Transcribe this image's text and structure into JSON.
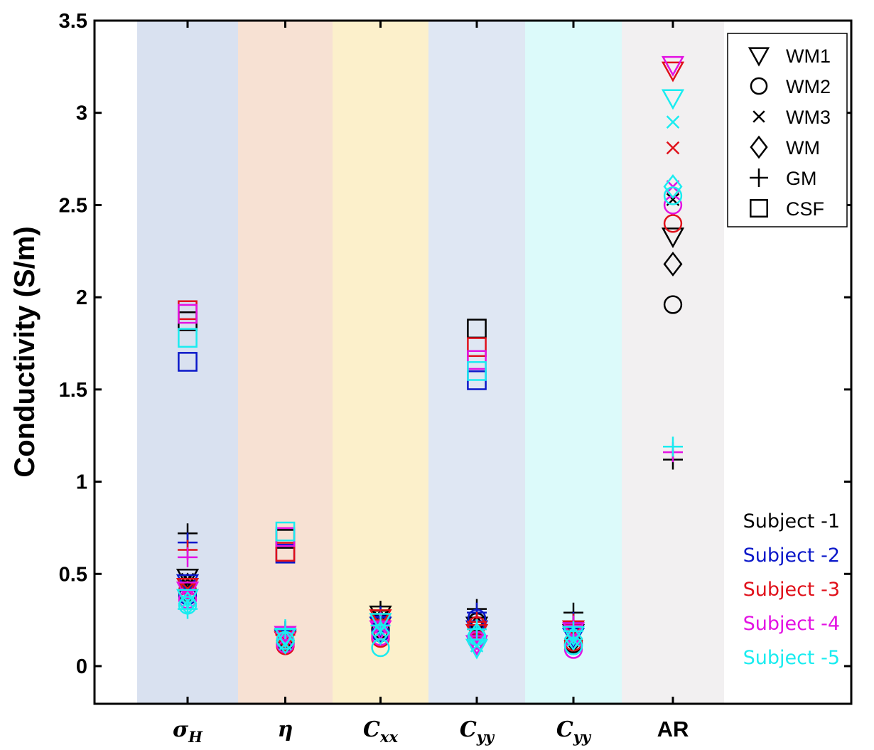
{
  "chart_data": {
    "type": "scatter",
    "ylabel": "Conductivity (S/m)",
    "ylim": [
      -0.2,
      3.5
    ],
    "yticks": [
      "0",
      "0.5",
      "1",
      "1.5",
      "2",
      "2.5",
      "3",
      "3.5"
    ],
    "categories": [
      {
        "base": "σ",
        "sub": "H",
        "italic": true,
        "band": "#d9e1f0"
      },
      {
        "base": "η",
        "sub": "",
        "italic": true,
        "band": "#f7e1d3"
      },
      {
        "base": "C",
        "sub": "xx",
        "italic": true,
        "band": "#fcf0cb"
      },
      {
        "base": "C",
        "sub": "yy",
        "italic": true,
        "band": "#dfe7f3"
      },
      {
        "base": "C",
        "sub": "yy",
        "italic": true,
        "band": "#dcfafa"
      },
      {
        "base": "AR",
        "sub": "",
        "italic": false,
        "band": "#f2f0f1"
      }
    ],
    "legend_markers": [
      {
        "marker": "triangle-down",
        "label": "WM1"
      },
      {
        "marker": "circle",
        "label": "WM2"
      },
      {
        "marker": "x",
        "label": "WM3"
      },
      {
        "marker": "diamond",
        "label": "WM"
      },
      {
        "marker": "plus",
        "label": "GM"
      },
      {
        "marker": "square",
        "label": "CSF"
      }
    ],
    "subjects": [
      {
        "label": "Subject -1",
        "color": "#000000"
      },
      {
        "label": "Subject -2",
        "color": "#0a17c9"
      },
      {
        "label": "Subject -3",
        "color": "#e0101a"
      },
      {
        "label": "Subject -4",
        "color": "#e312e3"
      },
      {
        "label": "Subject -5",
        "color": "#1aecf0"
      }
    ],
    "series": [
      {
        "subject": 0,
        "tissue": "WM1",
        "marker": "triangle-down",
        "values": [
          0.48,
          0.16,
          0.28,
          0.22,
          0.18,
          2.33
        ]
      },
      {
        "subject": 0,
        "tissue": "WM2",
        "marker": "circle",
        "values": [
          0.4,
          0.13,
          0.2,
          0.24,
          0.12,
          1.96
        ]
      },
      {
        "subject": 0,
        "tissue": "WM3",
        "marker": "x",
        "values": [
          0.47,
          0.15,
          0.26,
          0.19,
          0.15,
          2.53
        ]
      },
      {
        "subject": 0,
        "tissue": "WM",
        "marker": "diamond",
        "values": [
          0.44,
          0.14,
          0.24,
          0.21,
          0.14,
          2.18
        ]
      },
      {
        "subject": 0,
        "tissue": "GM",
        "marker": "plus",
        "values": [
          0.72,
          0.19,
          0.3,
          0.31,
          0.29,
          1.12
        ]
      },
      {
        "subject": 0,
        "tissue": "CSF",
        "marker": "square",
        "values": [
          1.87,
          0.69,
          null,
          1.83,
          null,
          null
        ]
      },
      {
        "subject": 1,
        "tissue": "WM1",
        "marker": "triangle-down",
        "values": [
          0.45,
          0.15,
          0.22,
          0.2,
          0.16,
          null
        ]
      },
      {
        "subject": 1,
        "tissue": "WM2",
        "marker": "circle",
        "values": [
          0.38,
          0.12,
          0.18,
          0.26,
          0.11,
          null
        ]
      },
      {
        "subject": 1,
        "tissue": "GM",
        "marker": "plus",
        "values": [
          0.67,
          0.18,
          0.27,
          0.29,
          0.24,
          null
        ]
      },
      {
        "subject": 1,
        "tissue": "CSF",
        "marker": "square",
        "values": [
          1.65,
          0.61,
          null,
          1.55,
          null,
          null
        ]
      },
      {
        "subject": 2,
        "tissue": "WM1",
        "marker": "triangle-down",
        "values": [
          0.43,
          0.14,
          0.26,
          0.18,
          0.2,
          3.23
        ]
      },
      {
        "subject": 2,
        "tissue": "WM2",
        "marker": "circle",
        "values": [
          0.41,
          0.11,
          0.15,
          0.22,
          0.13,
          2.4
        ]
      },
      {
        "subject": 2,
        "tissue": "WM3",
        "marker": "x",
        "values": [
          0.42,
          0.16,
          0.23,
          0.17,
          0.17,
          2.81
        ]
      },
      {
        "subject": 2,
        "tissue": "GM",
        "marker": "plus",
        "values": [
          0.63,
          0.17,
          0.25,
          0.24,
          0.23,
          null
        ]
      },
      {
        "subject": 2,
        "tissue": "CSF",
        "marker": "square",
        "values": [
          1.93,
          0.62,
          null,
          1.73,
          null,
          null
        ]
      },
      {
        "subject": 3,
        "tissue": "WM1",
        "marker": "triangle-down",
        "values": [
          0.41,
          0.17,
          0.2,
          0.12,
          0.19,
          3.26
        ]
      },
      {
        "subject": 3,
        "tissue": "WM2",
        "marker": "circle",
        "values": [
          0.36,
          0.12,
          0.16,
          0.14,
          0.09,
          2.5
        ]
      },
      {
        "subject": 3,
        "tissue": "WM3",
        "marker": "x",
        "values": [
          0.39,
          0.15,
          0.21,
          0.13,
          0.16,
          2.6
        ]
      },
      {
        "subject": 3,
        "tissue": "GM",
        "marker": "plus",
        "values": [
          0.59,
          0.18,
          0.24,
          0.15,
          0.22,
          1.16
        ]
      },
      {
        "subject": 3,
        "tissue": "CSF",
        "marker": "square",
        "values": [
          1.91,
          0.7,
          null,
          1.66,
          null,
          null
        ]
      },
      {
        "subject": 4,
        "tissue": "WM1",
        "marker": "triangle-down",
        "values": [
          0.37,
          0.16,
          0.24,
          0.1,
          0.17,
          3.08
        ]
      },
      {
        "subject": 4,
        "tissue": "WM2",
        "marker": "circle",
        "values": [
          0.33,
          0.14,
          0.1,
          0.16,
          0.11,
          2.55
        ]
      },
      {
        "subject": 4,
        "tissue": "WM3",
        "marker": "x",
        "values": [
          0.35,
          0.12,
          0.19,
          0.11,
          0.14,
          2.95
        ]
      },
      {
        "subject": 4,
        "tissue": "WM",
        "marker": "diamond",
        "values": [
          0.34,
          0.13,
          0.18,
          0.17,
          0.15,
          2.6
        ]
      },
      {
        "subject": 4,
        "tissue": "GM",
        "marker": "plus",
        "values": [
          0.31,
          0.2,
          0.22,
          0.2,
          0.19,
          1.19
        ]
      },
      {
        "subject": 4,
        "tissue": "CSF",
        "marker": "square",
        "values": [
          1.78,
          0.73,
          null,
          1.6,
          null,
          null
        ]
      }
    ]
  }
}
